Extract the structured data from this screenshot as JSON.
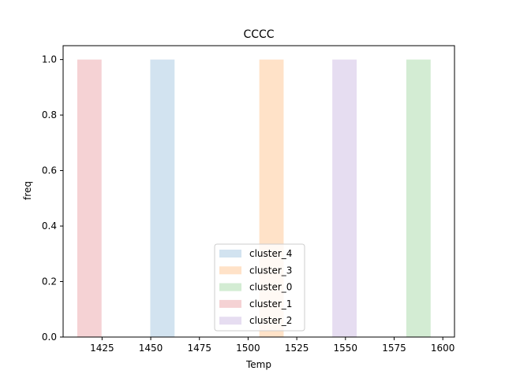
{
  "chart_data": {
    "type": "bar",
    "title": "CCCC",
    "xlabel": "Temp",
    "ylabel": "freq",
    "xlim": [
      1405,
      1606
    ],
    "ylim": [
      0,
      1.05
    ],
    "x_ticks": [
      1425,
      1450,
      1475,
      1500,
      1525,
      1550,
      1575,
      1600
    ],
    "y_ticks": [
      "0.0",
      "0.2",
      "0.4",
      "0.6",
      "0.8",
      "1.0"
    ],
    "grid": false,
    "legend_position": "lower-center",
    "bar_width": 12.5,
    "series": [
      {
        "name": "cluster_4",
        "x": 1456,
        "value": 1.0,
        "color": "#d2e3f0"
      },
      {
        "name": "cluster_3",
        "x": 1512,
        "value": 1.0,
        "color": "#ffe2c8"
      },
      {
        "name": "cluster_0",
        "x": 1587.5,
        "value": 1.0,
        "color": "#d3ecd3"
      },
      {
        "name": "cluster_1",
        "x": 1418.5,
        "value": 1.0,
        "color": "#f5d2d4"
      },
      {
        "name": "cluster_2",
        "x": 1549.5,
        "value": 1.0,
        "color": "#e6ddf1"
      }
    ]
  }
}
